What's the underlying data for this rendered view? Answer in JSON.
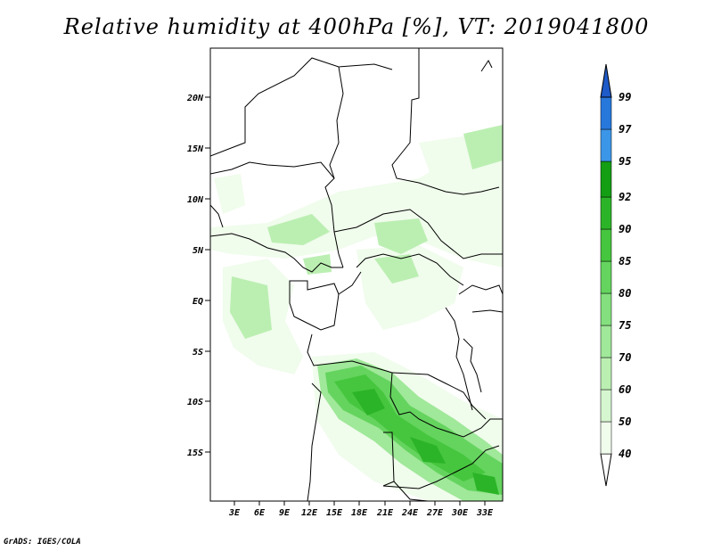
{
  "title": "Relative humidity at 400hPa [%], VT: 2019041800",
  "credit": "GrADS: IGES/COLA",
  "lat_ticks": [
    "20N",
    "15N",
    "10N",
    "5N",
    "EQ",
    "5S",
    "10S",
    "15S"
  ],
  "lon_ticks": [
    "3E",
    "6E",
    "9E",
    "12E",
    "15E",
    "18E",
    "21E",
    "24E",
    "27E",
    "30E",
    "33E"
  ],
  "colorbar": {
    "labels": [
      "40",
      "50",
      "60",
      "70",
      "75",
      "80",
      "85",
      "90",
      "92",
      "95",
      "97",
      "99"
    ],
    "colors": [
      "#f0fcec",
      "#d6f6cf",
      "#bbefb2",
      "#a0e89a",
      "#84e07e",
      "#64d45e",
      "#46c63e",
      "#2cb428",
      "#149e14",
      "#3c96e8",
      "#2878dc",
      "#1e5ac8"
    ]
  }
}
